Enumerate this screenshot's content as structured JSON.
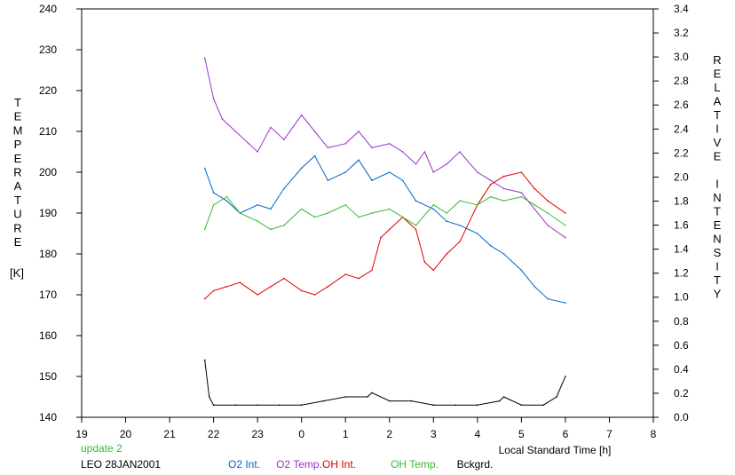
{
  "chart_data": {
    "type": "line",
    "x_unit_label": "Local Standard Time [h]",
    "x_ticks": [
      19,
      20,
      21,
      22,
      23,
      0,
      1,
      2,
      3,
      4,
      5,
      6,
      7,
      8
    ],
    "x_range_hours": [
      19,
      32
    ],
    "y_left": {
      "label": "TEMPERATURE",
      "unit": "[K]",
      "range": [
        140,
        240
      ],
      "ticks": [
        140,
        150,
        160,
        170,
        180,
        190,
        200,
        210,
        220,
        230,
        240
      ]
    },
    "y_right": {
      "label": "RELATIVE INTENSITY",
      "range": [
        0.0,
        3.4
      ],
      "ticks": [
        "0.0",
        "0.2",
        "0.4",
        "0.6",
        "0.8",
        "1.0",
        "1.2",
        "1.4",
        "1.6",
        "1.8",
        "2.0",
        "2.2",
        "2.4",
        "2.6",
        "2.8",
        "3.0",
        "3.2",
        "3.4"
      ]
    },
    "series": [
      {
        "name": "O2 Int.",
        "color": "#0066cc",
        "axis": "left",
        "x": [
          21.8,
          22.0,
          22.3,
          22.6,
          23.0,
          23.3,
          23.6,
          24.0,
          24.3,
          24.6,
          25.0,
          25.3,
          25.6,
          26.0,
          26.3,
          26.6,
          27.0,
          27.3,
          27.6,
          28.0,
          28.3,
          28.6,
          29.0,
          29.3,
          29.6,
          30.0
        ],
        "values": [
          201,
          195,
          193,
          190,
          192,
          191,
          196,
          201,
          204,
          198,
          200,
          203,
          198,
          200,
          198,
          193,
          191,
          188,
          187,
          185,
          182,
          180,
          176,
          172,
          169,
          168
        ]
      },
      {
        "name": "O2 Temp.",
        "color": "#9933cc",
        "axis": "left",
        "x": [
          21.8,
          22.0,
          22.2,
          22.5,
          22.8,
          23.0,
          23.3,
          23.6,
          24.0,
          24.3,
          24.6,
          25.0,
          25.3,
          25.6,
          26.0,
          26.3,
          26.6,
          26.8,
          27.0,
          27.3,
          27.6,
          28.0,
          28.3,
          28.6,
          29.0,
          29.3,
          29.6,
          30.0
        ],
        "values": [
          228,
          218,
          213,
          210,
          207,
          205,
          211,
          208,
          214,
          210,
          206,
          207,
          210,
          206,
          207,
          205,
          202,
          205,
          200,
          202,
          205,
          200,
          198,
          196,
          195,
          191,
          187,
          184
        ]
      },
      {
        "name": "OH Int.",
        "color": "#dd0000",
        "axis": "left",
        "x": [
          21.8,
          22.0,
          22.3,
          22.6,
          23.0,
          23.3,
          23.6,
          24.0,
          24.3,
          24.6,
          25.0,
          25.3,
          25.6,
          25.8,
          26.0,
          26.3,
          26.6,
          26.8,
          27.0,
          27.3,
          27.6,
          28.0,
          28.3,
          28.6,
          29.0,
          29.3,
          29.6,
          30.0
        ],
        "values": [
          169,
          171,
          172,
          173,
          170,
          172,
          174,
          171,
          170,
          172,
          175,
          174,
          176,
          184,
          186,
          189,
          186,
          178,
          176,
          180,
          183,
          192,
          197,
          199,
          200,
          196,
          193,
          190
        ]
      },
      {
        "name": "OH Temp.",
        "color": "#33bb33",
        "axis": "left",
        "x": [
          21.8,
          22.0,
          22.3,
          22.6,
          23.0,
          23.3,
          23.6,
          24.0,
          24.3,
          24.6,
          25.0,
          25.3,
          25.6,
          26.0,
          26.3,
          26.6,
          27.0,
          27.3,
          27.6,
          28.0,
          28.3,
          28.6,
          29.0,
          29.3,
          29.6,
          30.0
        ],
        "values": [
          186,
          192,
          194,
          190,
          188,
          186,
          187,
          191,
          189,
          190,
          192,
          189,
          190,
          191,
          189,
          187,
          192,
          190,
          193,
          192,
          194,
          193,
          194,
          192,
          190,
          187
        ]
      },
      {
        "name": "Bckgrd.",
        "color": "#000000",
        "axis": "left",
        "x": [
          21.8,
          21.9,
          22.0,
          22.5,
          23.0,
          23.5,
          24.0,
          24.5,
          25.0,
          25.5,
          25.6,
          26.0,
          26.5,
          27.0,
          27.5,
          28.0,
          28.5,
          28.6,
          29.0,
          29.5,
          29.8,
          30.0
        ],
        "values": [
          154,
          145,
          143,
          143,
          143,
          143,
          143,
          144,
          145,
          145,
          146,
          144,
          144,
          143,
          143,
          143,
          144,
          145,
          143,
          143,
          145,
          150
        ]
      }
    ],
    "grid": false,
    "legend_position": "bottom"
  },
  "footer": {
    "update_text": "update 2",
    "site_date_text": "LEO 28JAN2001"
  }
}
